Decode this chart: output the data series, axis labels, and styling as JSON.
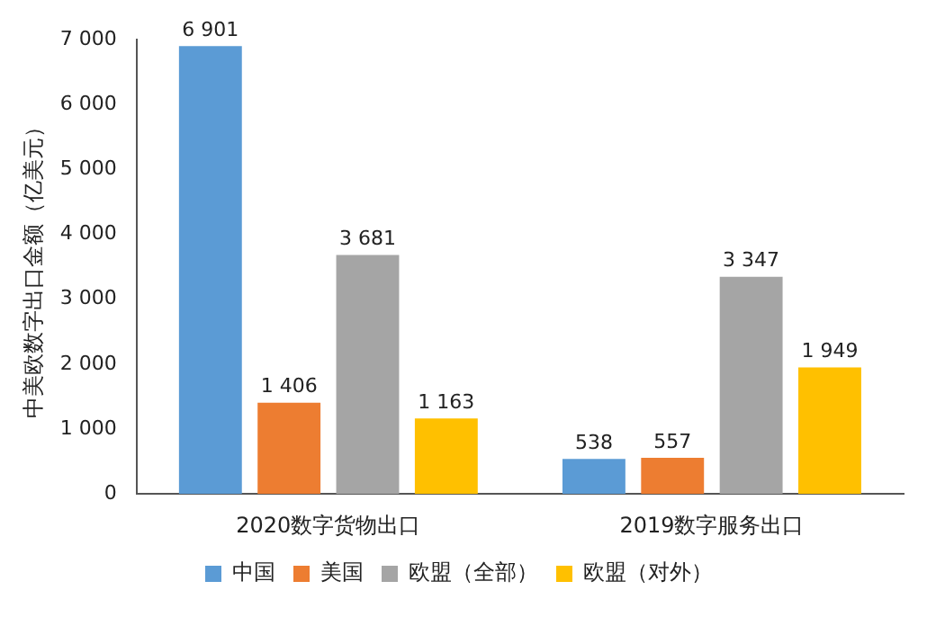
{
  "chart_data": {
    "type": "bar",
    "ylabel": "中美欧数字出口金额（亿美元）",
    "categories": [
      "2020数字货物出口",
      "2019数字服务出口"
    ],
    "series": [
      {
        "name": "中国",
        "color": "#5b9bd5",
        "values": [
          6901,
          538
        ],
        "value_labels": [
          "6 901",
          "538"
        ]
      },
      {
        "name": "美国",
        "color": "#ed7d31",
        "values": [
          1406,
          557
        ],
        "value_labels": [
          "1 406",
          "557"
        ]
      },
      {
        "name": "欧盟（全部）",
        "color": "#a5a5a5",
        "values": [
          3681,
          3347
        ],
        "value_labels": [
          "3 681",
          "3 347"
        ]
      },
      {
        "name": "欧盟（对外）",
        "color": "#ffc000",
        "values": [
          1163,
          1949
        ],
        "value_labels": [
          "1 163",
          "1 949"
        ]
      }
    ],
    "ylim": [
      0,
      7000
    ],
    "yticks": [
      0,
      {
        "value": 1000,
        "label": "1 000"
      },
      {
        "value": 2000,
        "label": "2 000"
      },
      {
        "value": 3000,
        "label": "3 000"
      },
      {
        "value": 4000,
        "label": "4 000"
      },
      {
        "value": 5000,
        "label": "5 000"
      },
      {
        "value": 6000,
        "label": "6 000"
      },
      {
        "value": 7000,
        "label": "7 000"
      }
    ],
    "grid": false,
    "legend": "bottom"
  }
}
